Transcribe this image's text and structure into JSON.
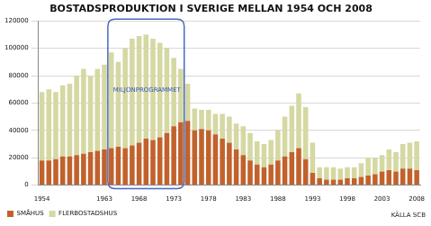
{
  "chart_data": {
    "type": "bar",
    "title": "BOSTADSPRODUKTION I SVERIGE MELLAN 1954 OCH 2008",
    "stacked": true,
    "grid": true,
    "legend": "bottom",
    "categories": [
      "1954",
      null,
      null,
      null,
      null,
      null,
      null,
      null,
      null,
      "1963",
      null,
      null,
      null,
      null,
      "1968",
      null,
      null,
      null,
      null,
      "1973",
      null,
      null,
      null,
      null,
      "1978",
      null,
      null,
      null,
      null,
      "1983",
      null,
      null,
      null,
      null,
      "1988",
      null,
      null,
      null,
      null,
      "1993",
      null,
      null,
      null,
      null,
      "1998",
      null,
      null,
      null,
      null,
      "2003",
      null,
      null,
      null,
      null,
      "2008"
    ],
    "series": [
      {
        "name": "SMÅHUS",
        "color": "#c1622c",
        "values": [
          18000,
          18000,
          19000,
          21000,
          21000,
          22000,
          23000,
          24000,
          25000,
          26000,
          27000,
          28000,
          27000,
          29000,
          31000,
          34000,
          33000,
          35000,
          38000,
          43000,
          46000,
          47000,
          40000,
          41000,
          40000,
          37000,
          34000,
          31000,
          26000,
          22000,
          18000,
          15000,
          13000,
          15000,
          18000,
          21000,
          24000,
          27000,
          19000,
          9000,
          5000,
          4000,
          4000,
          4000,
          5000,
          5000,
          6000,
          7000,
          8000,
          10000,
          11000,
          10000,
          12000,
          12000,
          11000
        ]
      },
      {
        "name": "FLERBOSTADSHUS",
        "color": "#d5d8a2",
        "values": [
          50000,
          52000,
          49000,
          52000,
          53000,
          58000,
          62000,
          56000,
          60000,
          62000,
          70000,
          62000,
          73000,
          78000,
          78000,
          76000,
          74000,
          69000,
          62000,
          50000,
          39000,
          27000,
          16000,
          14000,
          15000,
          15000,
          18000,
          19000,
          19000,
          21000,
          20000,
          17000,
          17000,
          18000,
          22000,
          29000,
          34000,
          40000,
          38000,
          22000,
          8000,
          9000,
          9000,
          8000,
          8000,
          8000,
          10000,
          13000,
          12000,
          12000,
          15000,
          14000,
          18000,
          19000,
          21000
        ]
      }
    ],
    "ylim": [
      0,
      120000
    ],
    "yticks": [
      0,
      20000,
      40000,
      60000,
      80000,
      100000,
      120000
    ],
    "annotations": [
      {
        "text": "MILJONPROGRAMMET",
        "x_range": [
          1964,
          1974
        ]
      }
    ],
    "source": "KÄLLA SCB"
  }
}
